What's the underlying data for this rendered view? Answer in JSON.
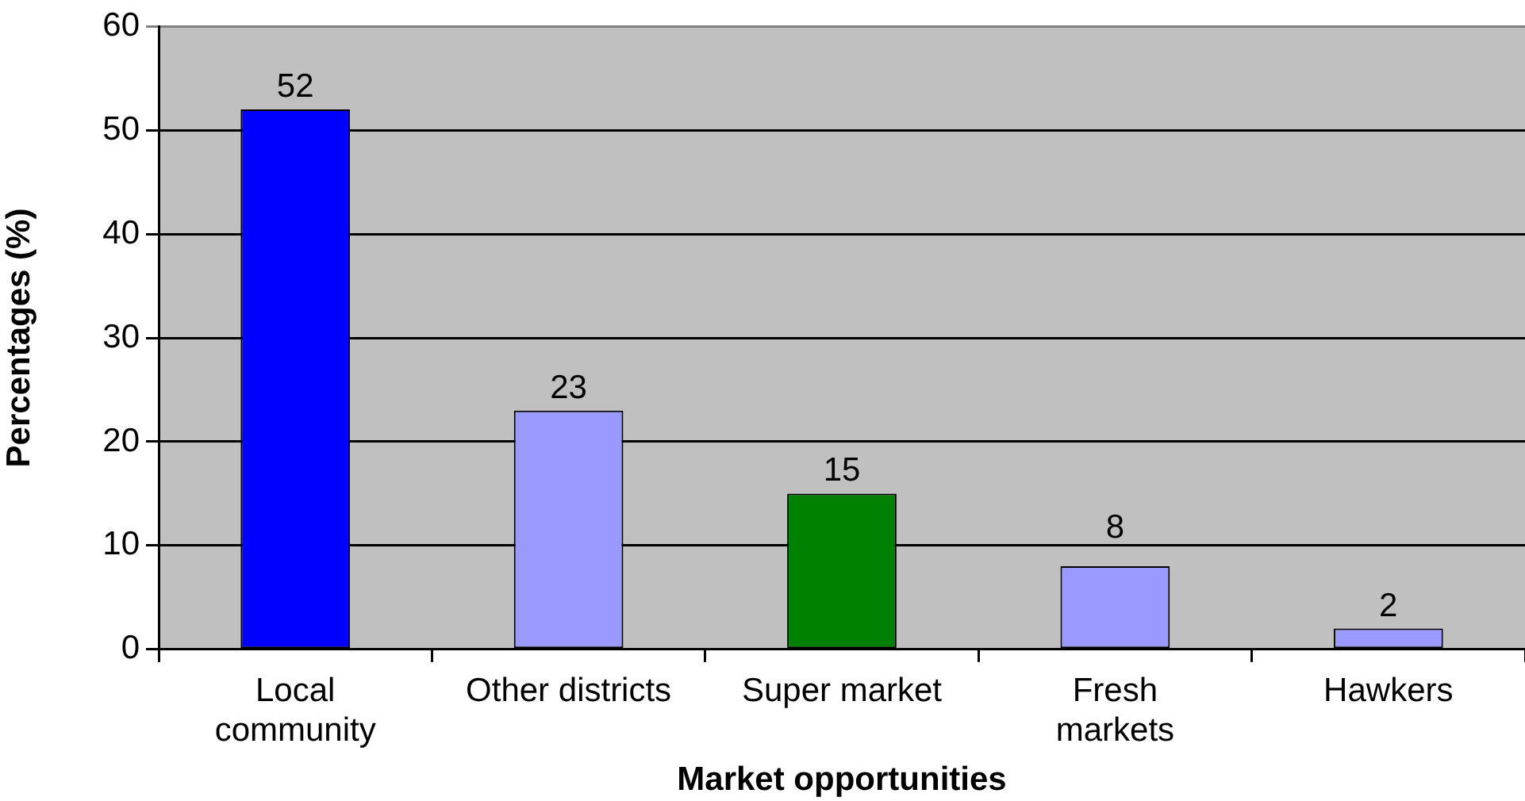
{
  "chart_data": {
    "type": "bar",
    "xlabel": "Market opportunities",
    "ylabel": "Percentages (%)",
    "categories": [
      "Local\ncommunity",
      "Other districts",
      "Super market",
      "Fresh\nmarkets",
      "Hawkers"
    ],
    "values": [
      52,
      23,
      15,
      8,
      2
    ],
    "colors": [
      "#0000ff",
      "#9999ff",
      "#008000",
      "#9999ff",
      "#9999ff"
    ],
    "ylim": [
      0,
      60
    ],
    "yticks": [
      0,
      10,
      20,
      30,
      40,
      50,
      60
    ],
    "grid": "y",
    "data_labels": true
  }
}
